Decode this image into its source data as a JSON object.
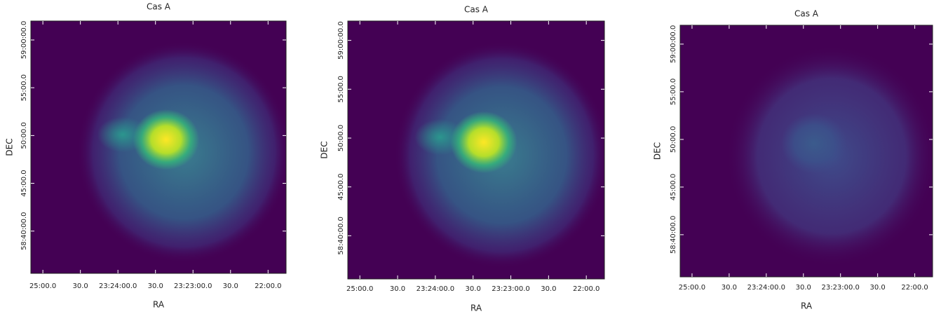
{
  "chart_data": [
    {
      "type": "image",
      "title": "Cas A",
      "xlabel": "RA",
      "ylabel": "DEC",
      "xlim": [
        351.29,
        350.44
      ],
      "ylim": [
        58.593,
        59.033
      ],
      "xticks": [
        {
          "value": 351.25,
          "label": "25:00.0"
        },
        {
          "value": 351.125,
          "label": "30.0"
        },
        {
          "value": 351.0,
          "label": "23:24:00.0"
        },
        {
          "value": 350.875,
          "label": "30.0"
        },
        {
          "value": 350.75,
          "label": "23:23:00.0"
        },
        {
          "value": 350.625,
          "label": "30.0"
        },
        {
          "value": 350.5,
          "label": "22:00.0"
        }
      ],
      "yticks": [
        {
          "value": 59.0,
          "label": "59:00:00.0"
        },
        {
          "value": 58.9167,
          "label": "55:00.0"
        },
        {
          "value": 58.8333,
          "label": "50:00.0"
        },
        {
          "value": 58.75,
          "label": "45:00.0"
        },
        {
          "value": 58.6667,
          "label": "58:40:00.0"
        }
      ]
    },
    {
      "type": "image",
      "title": "Cas A",
      "xlabel": "RA",
      "ylabel": "DEC",
      "xlim": [
        351.29,
        350.44
      ],
      "ylim": [
        58.593,
        59.033
      ],
      "xticks": [
        {
          "value": 351.25,
          "label": "25:00.0"
        },
        {
          "value": 351.125,
          "label": "30.0"
        },
        {
          "value": 351.0,
          "label": "23:24:00.0"
        },
        {
          "value": 350.875,
          "label": "30.0"
        },
        {
          "value": 350.75,
          "label": "23:23:00.0"
        },
        {
          "value": 350.625,
          "label": "30.0"
        },
        {
          "value": 350.5,
          "label": "22:00.0"
        }
      ],
      "yticks": [
        {
          "value": 59.0,
          "label": "59:00:00.0"
        },
        {
          "value": 58.9167,
          "label": "55:00.0"
        },
        {
          "value": 58.8333,
          "label": "50:00.0"
        },
        {
          "value": 58.75,
          "label": "45:00.0"
        },
        {
          "value": 58.6667,
          "label": "58:40:00.0"
        }
      ]
    },
    {
      "type": "image",
      "title": "Cas A",
      "xlabel": "RA",
      "ylabel": "DEC",
      "xlim": [
        351.29,
        350.44
      ],
      "ylim": [
        58.593,
        59.033
      ],
      "xticks": [
        {
          "value": 351.25,
          "label": "25:00.0"
        },
        {
          "value": 351.125,
          "label": "30.0"
        },
        {
          "value": 351.0,
          "label": "23:24:00.0"
        },
        {
          "value": 350.875,
          "label": "30.0"
        },
        {
          "value": 350.75,
          "label": "23:23:00.0"
        },
        {
          "value": 350.625,
          "label": "30.0"
        },
        {
          "value": 350.5,
          "label": "22:00.0"
        }
      ],
      "yticks": [
        {
          "value": 59.0,
          "label": "59:00:00.0"
        },
        {
          "value": 58.9167,
          "label": "55:00.0"
        },
        {
          "value": 58.8333,
          "label": "50:00.0"
        },
        {
          "value": 58.75,
          "label": "45:00.0"
        },
        {
          "value": 58.6667,
          "label": "58:40:00.0"
        }
      ]
    }
  ]
}
